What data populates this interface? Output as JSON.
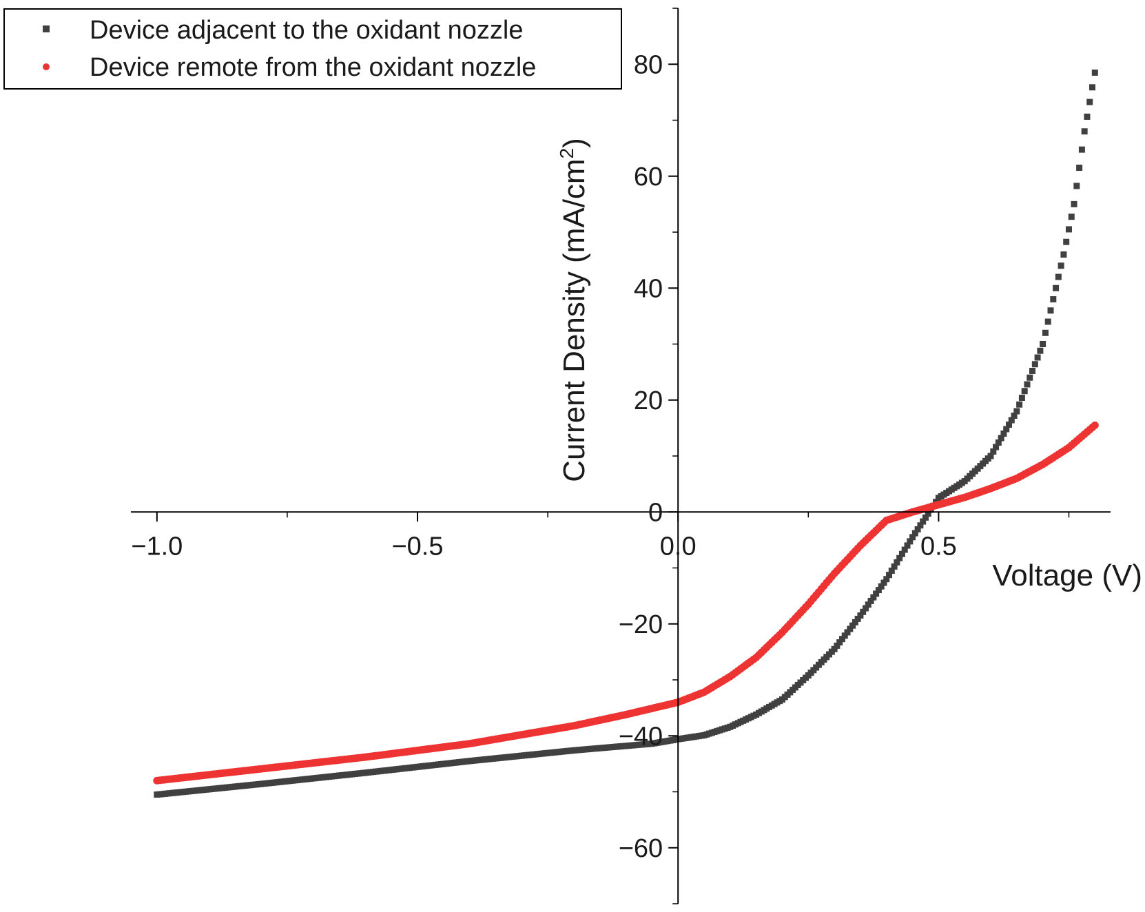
{
  "chart_data": {
    "type": "scatter",
    "xlabel": "Voltage (V)",
    "ylabel": "Current Density (mA/cm",
    "ylabel_sup": "2",
    "ylabel_close": ")",
    "xlim": [
      -1.05,
      0.83
    ],
    "ylim": [
      -70,
      90
    ],
    "x_ticks": [
      -1.0,
      -0.5,
      0.0,
      0.5
    ],
    "x_tick_labels": [
      "−1.0",
      "−0.5",
      "0.0",
      "0.5"
    ],
    "y_ticks": [
      -60,
      -40,
      -20,
      0,
      20,
      40,
      60,
      80
    ],
    "y_tick_labels": [
      "−60",
      "−40",
      "−20",
      "0",
      "20",
      "40",
      "60",
      "80"
    ],
    "grid": false,
    "legend_position": "top-left",
    "series": [
      {
        "name": "Device adjacent to the oxidant nozzle",
        "color": "#404040",
        "marker": "square",
        "points": [
          [
            -1.0,
            -50.5
          ],
          [
            -0.8,
            -48.6
          ],
          [
            -0.6,
            -46.6
          ],
          [
            -0.4,
            -44.5
          ],
          [
            -0.2,
            -42.6
          ],
          [
            -0.05,
            -41.4
          ],
          [
            0.0,
            -40.6
          ],
          [
            0.05,
            -39.9
          ],
          [
            0.1,
            -38.4
          ],
          [
            0.15,
            -36.2
          ],
          [
            0.2,
            -33.5
          ],
          [
            0.25,
            -29.2
          ],
          [
            0.3,
            -24.5
          ],
          [
            0.35,
            -18.5
          ],
          [
            0.4,
            -12.0
          ],
          [
            0.45,
            -4.5
          ],
          [
            0.5,
            2.5
          ],
          [
            0.55,
            5.5
          ],
          [
            0.6,
            10.0
          ],
          [
            0.65,
            18.0
          ],
          [
            0.7,
            30.0
          ],
          [
            0.72,
            38.0
          ],
          [
            0.74,
            46.0
          ],
          [
            0.76,
            55.0
          ],
          [
            0.78,
            68.0
          ],
          [
            0.8,
            78.5
          ]
        ]
      },
      {
        "name": "Device remote from the oxidant nozzle",
        "color": "#ee3333",
        "marker": "circle",
        "points": [
          [
            -1.0,
            -48.0
          ],
          [
            -0.8,
            -45.9
          ],
          [
            -0.6,
            -43.8
          ],
          [
            -0.4,
            -41.4
          ],
          [
            -0.2,
            -38.2
          ],
          [
            -0.1,
            -36.2
          ],
          [
            0.0,
            -34.0
          ],
          [
            0.05,
            -32.2
          ],
          [
            0.1,
            -29.4
          ],
          [
            0.15,
            -26.0
          ],
          [
            0.2,
            -21.5
          ],
          [
            0.25,
            -16.5
          ],
          [
            0.3,
            -11.0
          ],
          [
            0.35,
            -6.0
          ],
          [
            0.4,
            -1.5
          ],
          [
            0.45,
            0.0
          ],
          [
            0.5,
            1.3
          ],
          [
            0.55,
            2.6
          ],
          [
            0.6,
            4.2
          ],
          [
            0.65,
            6.0
          ],
          [
            0.7,
            8.5
          ],
          [
            0.75,
            11.5
          ],
          [
            0.8,
            15.5
          ]
        ]
      }
    ]
  }
}
